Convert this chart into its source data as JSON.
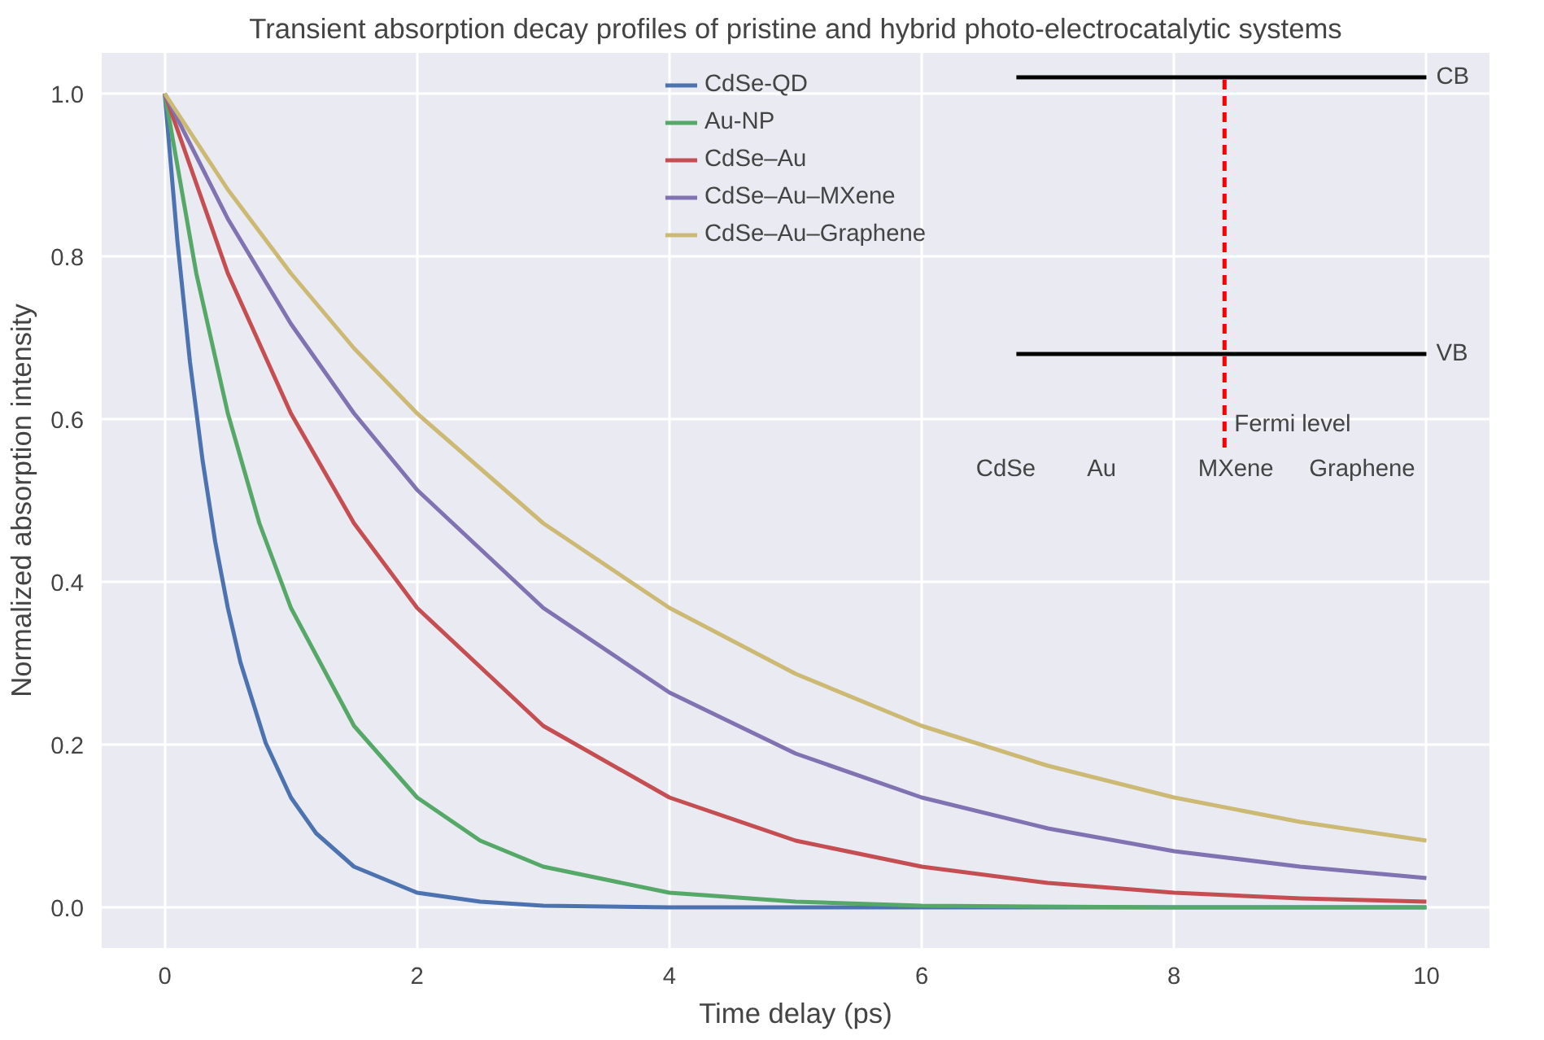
{
  "chart_data": {
    "type": "line",
    "title": "Transient absorption decay profiles of pristine and hybrid photo-electrocatalytic systems",
    "xlabel": "Time delay (ps)",
    "ylabel": "Normalized absorption intensity",
    "xlim": [
      -0.5,
      10.5
    ],
    "ylim": [
      -0.05,
      1.05
    ],
    "xticks": [
      0,
      2,
      4,
      6,
      8,
      10
    ],
    "yticks": [
      {
        "value": 0,
        "label": "0.0"
      },
      {
        "value": 0.2,
        "label": "0.2"
      },
      {
        "value": 0.4,
        "label": "0.4"
      },
      {
        "value": 0.6,
        "label": "0.6"
      },
      {
        "value": 0.8,
        "label": "0.8"
      },
      {
        "value": 1.0,
        "label": "1.0"
      }
    ],
    "grid": true,
    "legend": "top",
    "line_style": "solid",
    "series": [
      {
        "name": "CdSe-QD",
        "color": "#4c72b0",
        "x": [
          0,
          0.1,
          0.2,
          0.3,
          0.4,
          0.5,
          0.6,
          0.8,
          1,
          1.2,
          1.5,
          2,
          2.5,
          3,
          4,
          5,
          6,
          8,
          10
        ],
        "values": [
          1,
          0.819,
          0.67,
          0.549,
          0.449,
          0.368,
          0.301,
          0.202,
          0.135,
          0.091,
          0.05,
          0.018,
          0.007,
          0.002,
          0,
          0,
          0,
          0,
          0
        ]
      },
      {
        "name": "Au-NP",
        "color": "#55a868",
        "x": [
          0,
          0.25,
          0.5,
          0.75,
          1,
          1.5,
          2,
          2.5,
          3,
          4,
          5,
          6,
          8,
          10
        ],
        "values": [
          1,
          0.779,
          0.607,
          0.472,
          0.368,
          0.223,
          0.135,
          0.082,
          0.05,
          0.018,
          0.007,
          0.002,
          0,
          0
        ]
      },
      {
        "name": "CdSe–Au",
        "color": "#c44e52",
        "x": [
          0,
          0.5,
          1,
          1.5,
          2,
          3,
          4,
          5,
          6,
          7,
          8,
          9,
          10
        ],
        "values": [
          1,
          0.779,
          0.607,
          0.472,
          0.368,
          0.223,
          0.135,
          0.082,
          0.05,
          0.03,
          0.018,
          0.011,
          0.007
        ]
      },
      {
        "name": "CdSe–Au–MXene",
        "color": "#8172b2",
        "x": [
          0,
          0.5,
          1,
          1.5,
          2,
          3,
          4,
          5,
          6,
          7,
          8,
          9,
          10
        ],
        "values": [
          1,
          0.846,
          0.717,
          0.607,
          0.513,
          0.368,
          0.264,
          0.189,
          0.135,
          0.097,
          0.069,
          0.05,
          0.036
        ]
      },
      {
        "name": "CdSe–Au–Graphene",
        "color": "#ccb974",
        "x": [
          0,
          0.5,
          1,
          1.5,
          2,
          3,
          4,
          5,
          6,
          7,
          8,
          9,
          10
        ],
        "values": [
          1,
          0.882,
          0.779,
          0.687,
          0.607,
          0.472,
          0.368,
          0.287,
          0.223,
          0.174,
          0.135,
          0.105,
          0.082
        ]
      },
      {
        "color": "#000000",
        "x": [
          6.75,
          10
        ],
        "values": [
          1.02,
          1.02
        ]
      },
      {
        "color": "#000000",
        "x": [
          6.75,
          10
        ],
        "values": [
          0.68,
          0.68
        ]
      },
      {
        "color": "#ff0000",
        "line_style": "dashed",
        "x": [
          8.4,
          8.4
        ],
        "values": [
          0.565,
          1.02
        ]
      }
    ],
    "annotations": [
      "CB",
      "VB",
      "Fermi level",
      "CdSe",
      "Au",
      "MXene",
      "Graphene"
    ]
  }
}
